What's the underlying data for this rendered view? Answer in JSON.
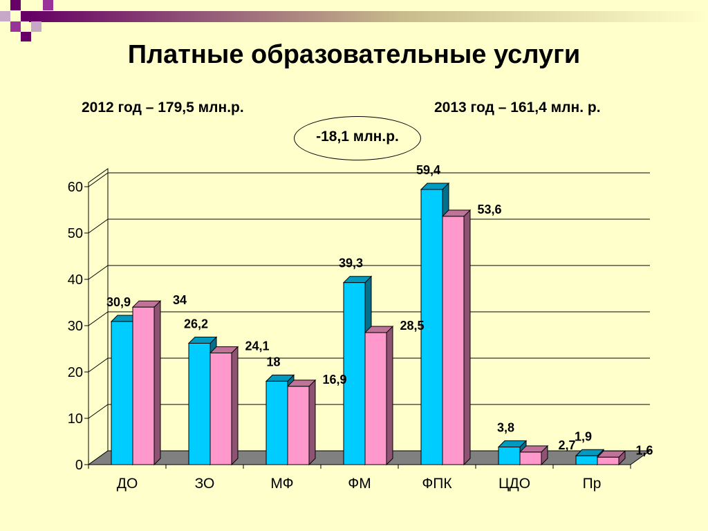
{
  "slide": {
    "title": "Платные образовательные услуги",
    "subtitle_left": "2012 год – 179,5 млн.р.",
    "subtitle_right": "2013 год – 161,4 млн. р.",
    "difference": "-18,1 млн.р."
  },
  "colors": {
    "background": "#FFFFCC",
    "series_2012": "#00CCFF",
    "series_2013": "#FF99CC",
    "floor": "#808080",
    "deco_purple": "#660066"
  },
  "chart_data": {
    "type": "bar",
    "title": "",
    "xlabel": "",
    "ylabel": "",
    "categories": [
      "ДО",
      "ЗО",
      "МФ",
      "ФМ",
      "ФПК",
      "ЦДО",
      "Пр"
    ],
    "series": [
      {
        "values": [
          30.9,
          26.2,
          18,
          39.3,
          59.4,
          3.8,
          1.9
        ],
        "labels": [
          "30,9",
          "26,2",
          "18",
          "39,3",
          "59,4",
          "3,8",
          "1,9"
        ]
      },
      {
        "values": [
          34,
          24.1,
          16.9,
          28.5,
          53.6,
          2.7,
          1.6
        ],
        "labels": [
          "34",
          "24,1",
          "16,9",
          "28,5",
          "53,6",
          "2,7",
          "1,6"
        ]
      }
    ],
    "ylim": [
      0,
      60
    ],
    "yticks": [
      "0",
      "10",
      "20",
      "30",
      "40",
      "50",
      "60"
    ],
    "grid": true,
    "style": "3d"
  }
}
